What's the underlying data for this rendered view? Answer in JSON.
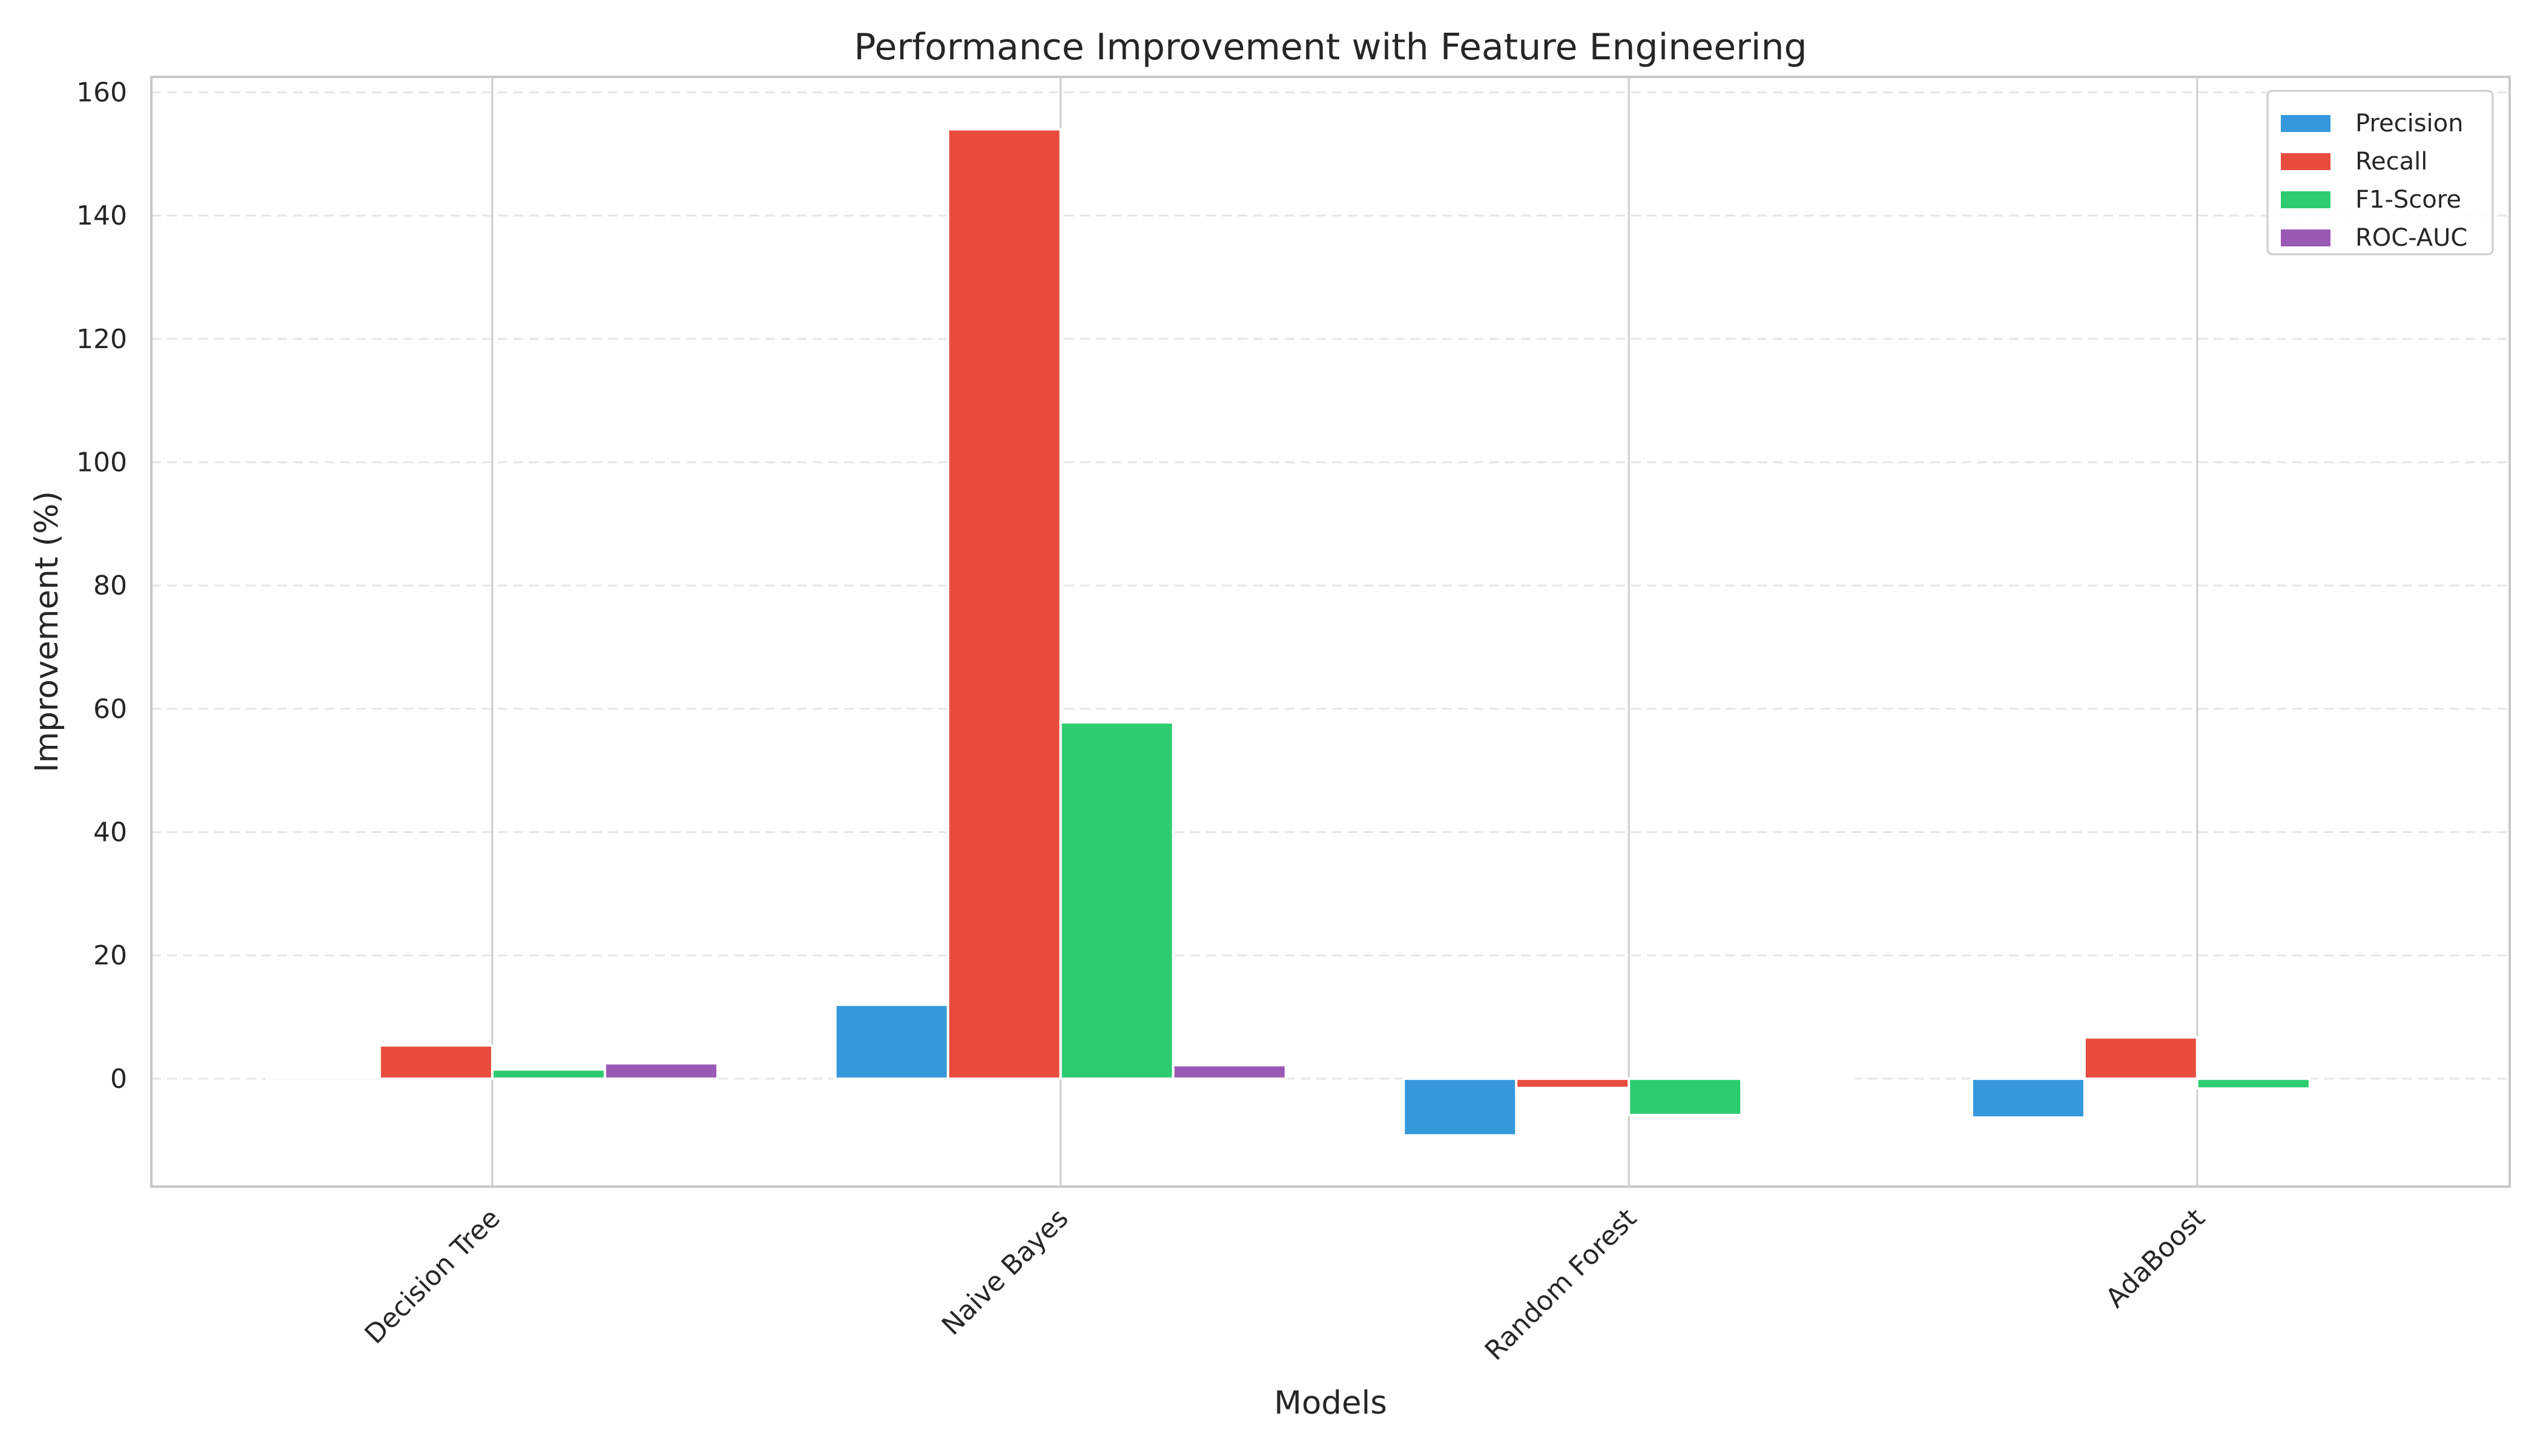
{
  "chart_data": {
    "type": "bar",
    "title": "Performance Improvement with Feature Engineering",
    "xlabel": "Models",
    "ylabel": "Improvement (%)",
    "categories": [
      "Decision Tree",
      "Naive Bayes",
      "Random Forest",
      "AdaBoost"
    ],
    "series": [
      {
        "name": "Precision",
        "color": "#3498db",
        "values": [
          -0.4,
          12.0,
          -9.2,
          -6.3
        ]
      },
      {
        "name": "Recall",
        "color": "#e74c3c",
        "values": [
          5.4,
          154.0,
          -1.5,
          6.7
        ]
      },
      {
        "name": "F1-Score",
        "color": "#2ecc71",
        "values": [
          1.5,
          57.8,
          -5.9,
          -1.6
        ]
      },
      {
        "name": "ROC-AUC",
        "color": "#9b59b6",
        "values": [
          2.5,
          2.2,
          -0.3,
          0.0
        ]
      }
    ],
    "ylim": [
      -17.5,
      162.5
    ],
    "yticks": [
      0,
      20,
      40,
      60,
      80,
      100,
      120,
      140,
      160
    ],
    "grid": "horizontal dashed",
    "legend": "top-right"
  }
}
